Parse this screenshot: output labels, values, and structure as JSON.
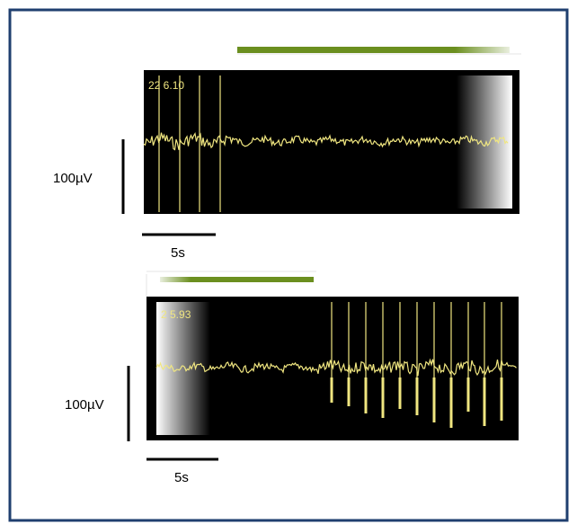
{
  "panels": [
    {
      "id": "top",
      "header": "22 6.10",
      "scale_label": "100µV",
      "time_label": "5s"
    },
    {
      "id": "bottom",
      "header": "2 5.93",
      "scale_label": "100µV",
      "time_label": "5s"
    }
  ],
  "colors": {
    "border": "#1f3f6f",
    "trace": "#f0e680",
    "bar_green": "#6b8f1f",
    "panel_bg": "#000000"
  }
}
